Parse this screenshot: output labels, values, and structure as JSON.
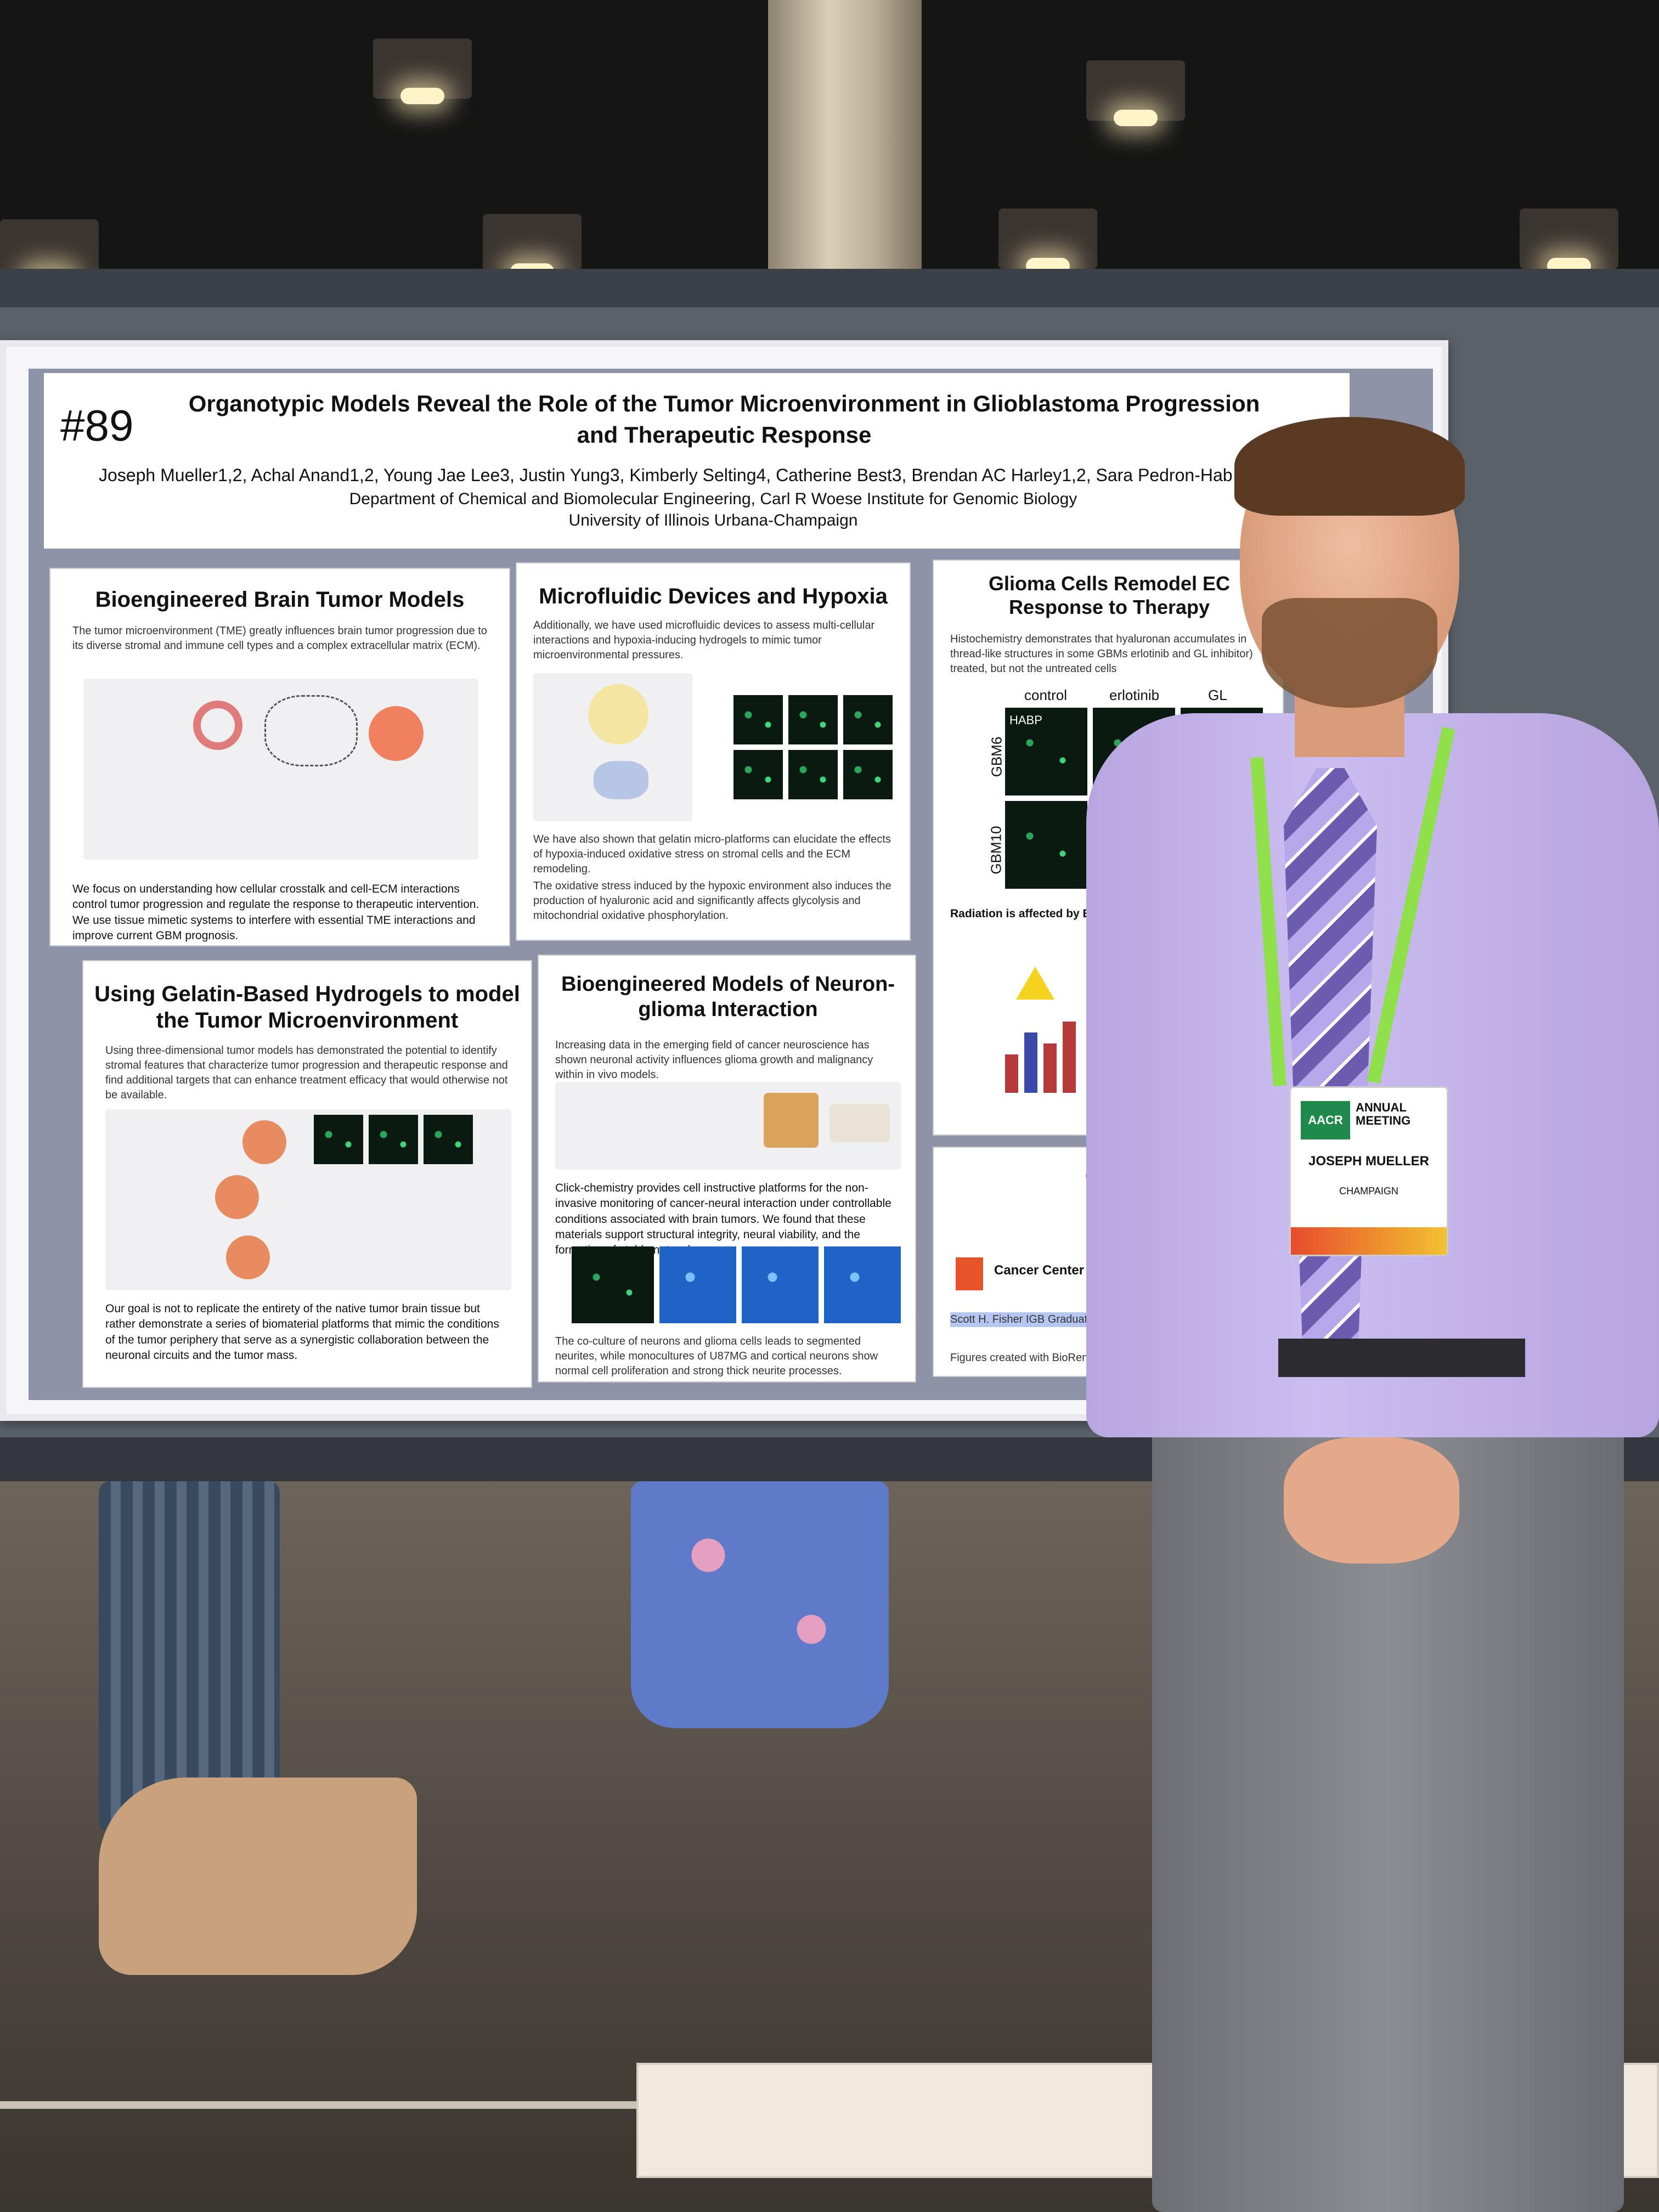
{
  "poster": {
    "number": "#89",
    "title": "Organotypic Models Reveal the Role of the Tumor Microenvironment in Glioblastoma Progression and Therapeutic Response",
    "authors": "Joseph Mueller1,2, Achal Anand1,2, Young Jae Lee3, Justin Yung3, Kimberly Selting4, Catherine Best3, Brendan AC Harley1,2, Sara Pedron-Hab",
    "affiliation_1": "Department of Chemical and Biomolecular Engineering, Carl R Woese Institute for Genomic Biology",
    "affiliation_2": "University of Illinois Urbana-Champaign",
    "panels": {
      "brain_tumor": {
        "title": "Bioengineered Brain Tumor Models",
        "intro": "The tumor microenvironment (TME) greatly influences brain tumor progression due to its diverse stromal and immune cell types and a complex extracellular matrix (ECM).",
        "focus": "We focus on understanding how cellular crosstalk and cell-ECM interactions control tumor progression and regulate the response to therapeutic intervention. We use tissue mimetic systems to interfere with essential TME interactions and improve current GBM prognosis."
      },
      "microfluidic": {
        "title": "Microfluidic Devices and Hypoxia",
        "intro": "Additionally, we have used microfluidic devices to assess multi-cellular interactions and hypoxia-inducing hydrogels to mimic tumor microenvironmental pressures.",
        "body_1": "We have also shown that gelatin micro-platforms can elucidate the effects of hypoxia-induced oxidative stress on stromal cells and the ECM remodeling.",
        "body_2": "The oxidative stress induced by the hypoxic environment also induces the production of hyaluronic acid and significantly affects glycolysis and mitochondrial oxidative phosphorylation."
      },
      "glioma_cells": {
        "title": "Glioma Cells Remodel EC Response to Therapy",
        "intro": "Histochemistry demonstrates that hyaluronan accumulates in thread-like structures in some GBMs erlotinib and GL inhibitor) treated, but not the untreated cells",
        "col_control": "control",
        "col_erlotinib": "erlotinib",
        "col_gl": "GL",
        "row_1": "GBM6",
        "row_2": "GBM10",
        "stain": "HABP",
        "radiation": "Radiation is affected by ECM"
      },
      "hydrogels": {
        "title": "Using Gelatin-Based Hydrogels to model the Tumor Microenvironment",
        "intro": "Using three-dimensional tumor models has demonstrated the potential to identify stromal features that characterize tumor progression and therapeutic response and find additional targets that can enhance treatment efficacy that would otherwise not be available.",
        "goal": "Our goal is not to replicate the entirety of the native tumor brain tissue but rather demonstrate a series of biomaterial platforms that mimic the conditions of the tumor periphery that serve as a synergistic collaboration between the neuronal circuits and the tumor mass."
      },
      "neuron_glioma": {
        "title": "Bioengineered Models of Neuron-glioma Interaction",
        "intro": "Increasing data in the emerging field of cancer neuroscience has shown neuronal activity influences glioma growth and malignancy within in vivo models.",
        "body": "Click-chemistry provides cell instructive platforms for the non-invasive monitoring of cancer-neural interaction under controllable conditions associated with brain tumors. We found that these materials support structural integrity, neural viability, and the formation of stable networks.",
        "coculture": "The co-culture of neurons and glioma cells leads to segmented neurites, while monocultures of U87MG and cortical neurons show normal cell proliferation and strong thick neurite processes."
      },
      "conclusions": {
        "title": "Co",
        "cancer_center": "Cancer Center at Illinois",
        "funding": "Scott H. Fisher IGB Graduate Research Fund",
        "credit": "Figures created with BioRender.com"
      }
    }
  },
  "badge": {
    "logo": "AACR",
    "meeting": "ANNUAL MEETING",
    "name": "JOSEPH MUELLER",
    "city": "CHAMPAIGN"
  }
}
